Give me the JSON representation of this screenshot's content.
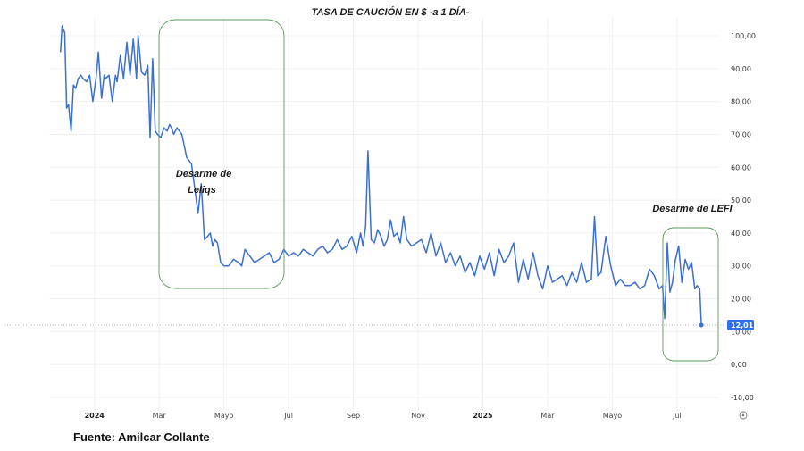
{
  "chart_data": {
    "type": "line",
    "title": "TASA DE CAUCIÓN EN $ -a 1 DÍA-",
    "xlabel": "",
    "ylabel": "",
    "ylim": [
      -10,
      100
    ],
    "y_ticks": [
      "100,00",
      "90,00",
      "80,00",
      "70,00",
      "60,00",
      "50,00",
      "40,00",
      "30,00",
      "20,00",
      "10,00",
      "0,00",
      "-10,00"
    ],
    "y_tick_values": [
      100,
      90,
      80,
      70,
      60,
      50,
      40,
      30,
      20,
      10,
      0,
      -10
    ],
    "x_ticks": [
      {
        "label": "2024",
        "t": 0.5,
        "bold": true
      },
      {
        "label": "Mar",
        "t": 2.5,
        "bold": false
      },
      {
        "label": "Mayo",
        "t": 4.5,
        "bold": false
      },
      {
        "label": "Jul",
        "t": 6.5,
        "bold": false
      },
      {
        "label": "Sep",
        "t": 8.5,
        "bold": false
      },
      {
        "label": "Nov",
        "t": 10.5,
        "bold": false
      },
      {
        "label": "2025",
        "t": 12.5,
        "bold": true
      },
      {
        "label": "Mar",
        "t": 14.5,
        "bold": false
      },
      {
        "label": "Mayo",
        "t": 16.5,
        "bold": false
      },
      {
        "label": "Jul",
        "t": 18.5,
        "bold": false
      }
    ],
    "x_range": [
      -0.9,
      19.8
    ],
    "series": [
      {
        "name": "Tasa de caución en $ a 1 día",
        "color": "#3b6fd0",
        "x": [
          -0.55,
          -0.5,
          -0.42,
          -0.36,
          -0.3,
          -0.22,
          -0.15,
          -0.08,
          0.0,
          0.08,
          0.15,
          0.25,
          0.35,
          0.45,
          0.55,
          0.62,
          0.72,
          0.8,
          0.85,
          0.95,
          1.05,
          1.15,
          1.2,
          1.3,
          1.4,
          1.5,
          1.6,
          1.7,
          1.8,
          1.85,
          1.95,
          2.05,
          2.15,
          2.22,
          2.3,
          2.38,
          2.45,
          2.55,
          2.65,
          2.75,
          2.82,
          2.88,
          2.95,
          3.05,
          3.2,
          3.35,
          3.5,
          3.62,
          3.7,
          3.8,
          3.9,
          4.0,
          4.08,
          4.15,
          4.22,
          4.3,
          4.4,
          4.5,
          4.65,
          4.8,
          4.95,
          5.05,
          5.15,
          5.3,
          5.45,
          5.6,
          5.75,
          5.9,
          6.05,
          6.2,
          6.35,
          6.5,
          6.65,
          6.8,
          6.95,
          7.1,
          7.25,
          7.4,
          7.55,
          7.7,
          7.85,
          8.0,
          8.15,
          8.3,
          8.45,
          8.6,
          8.72,
          8.8,
          8.88,
          8.95,
          9.05,
          9.15,
          9.25,
          9.35,
          9.45,
          9.55,
          9.65,
          9.75,
          9.85,
          9.95,
          10.05,
          10.15,
          10.3,
          10.45,
          10.6,
          10.75,
          10.9,
          11.05,
          11.2,
          11.35,
          11.5,
          11.65,
          11.8,
          11.95,
          12.1,
          12.25,
          12.4,
          12.55,
          12.7,
          12.85,
          13.0,
          13.15,
          13.3,
          13.45,
          13.6,
          13.75,
          13.9,
          14.05,
          14.2,
          14.35,
          14.5,
          14.65,
          14.8,
          14.95,
          15.1,
          15.25,
          15.4,
          15.55,
          15.7,
          15.85,
          15.95,
          16.05,
          16.15,
          16.3,
          16.45,
          16.6,
          16.75,
          16.9,
          17.05,
          17.2,
          17.35,
          17.5,
          17.65,
          17.8,
          17.95,
          18.05,
          18.12,
          18.2,
          18.28,
          18.36,
          18.45,
          18.55,
          18.65,
          18.75,
          18.85,
          18.95,
          19.05,
          19.12,
          19.2,
          19.25
        ],
        "values": [
          95,
          103,
          101,
          78,
          79,
          71,
          85,
          84,
          87,
          88,
          87,
          86,
          88,
          80,
          87,
          95,
          81,
          88,
          87,
          88,
          80,
          88,
          86,
          94,
          87,
          98,
          88,
          99,
          87,
          100,
          89,
          88,
          91,
          69,
          93,
          71,
          70,
          69,
          72,
          71,
          73,
          72,
          70,
          72,
          70,
          63,
          61,
          52,
          46,
          55,
          38,
          39,
          40,
          36,
          38,
          37,
          31,
          30,
          30,
          32,
          31,
          30,
          35,
          33,
          31,
          32,
          33,
          34,
          31,
          32,
          35,
          33,
          34,
          33,
          35,
          34,
          33,
          35,
          36,
          34,
          35,
          38,
          35,
          36,
          39,
          34,
          40,
          36,
          42,
          65,
          38,
          37,
          41,
          39,
          36,
          38,
          44,
          39,
          40,
          37,
          45,
          38,
          36,
          37,
          38,
          34,
          40,
          33,
          37,
          31,
          34,
          30,
          33,
          28,
          31,
          27,
          33,
          29,
          34,
          27,
          35,
          31,
          33,
          37,
          25,
          32,
          26,
          34,
          27,
          23,
          30,
          25,
          26,
          27,
          24,
          28,
          25,
          31,
          25,
          26,
          45,
          27,
          28,
          39,
          30,
          24,
          26,
          24,
          24,
          25,
          23,
          24,
          29,
          27,
          23,
          24,
          14,
          37,
          22,
          25,
          32,
          36,
          25,
          32,
          29,
          31,
          23,
          24,
          23,
          12.01
        ]
      }
    ],
    "last_value_label": "12,01",
    "annotations": [
      {
        "text": "Desarme de",
        "text2": "Leliqs"
      },
      {
        "text": "Desarme de LEFI"
      }
    ],
    "colors": {
      "line": "#3b6fd0",
      "badge": "#2f6fe8",
      "annotation_box": "#5a9a5a",
      "grid": "#f0f0f0",
      "reference_line": "#999999"
    }
  },
  "source": "Fuente: Amilcar Collante"
}
